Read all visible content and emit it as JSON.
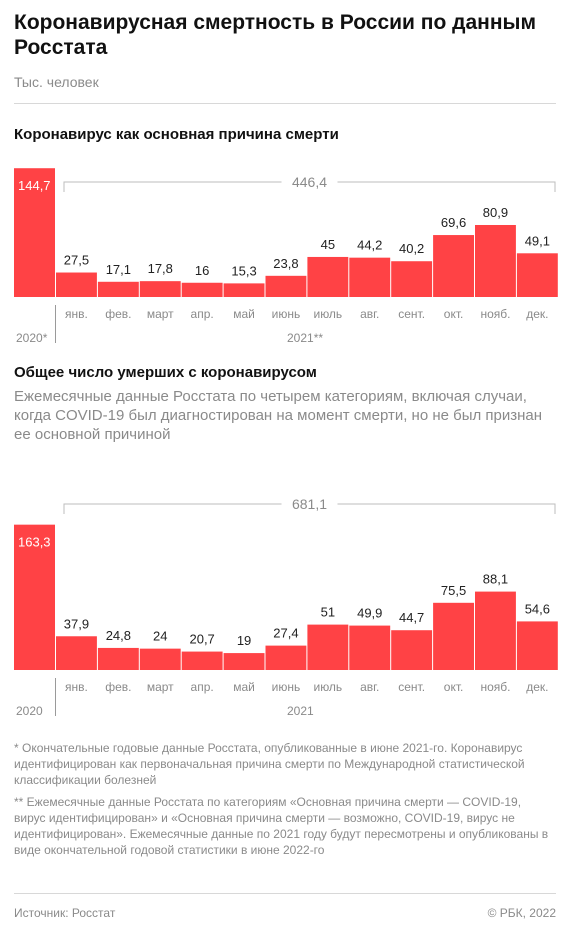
{
  "title": "Коронавирусная смертность в России по данным Росстата",
  "unit": "Тыс. человек",
  "chart_data": [
    {
      "type": "bar",
      "title": "Коронавирус как основная причина смерти",
      "subtitle": "",
      "bar_color": "#ff4245",
      "annual": {
        "year": "2020*",
        "label": "",
        "value": 144.7
      },
      "months_year": "2021**",
      "categories": [
        "янв.",
        "фев.",
        "март",
        "апр.",
        "май",
        "июнь",
        "июль",
        "авг.",
        "сент.",
        "окт.",
        "нояб.",
        "дек."
      ],
      "values": [
        27.5,
        17.1,
        17.8,
        16,
        15.3,
        23.8,
        45,
        44.2,
        40.2,
        69.6,
        80.9,
        49.1
      ],
      "value_labels": [
        "27,5",
        "17,1",
        "17,8",
        "16",
        "15,3",
        "23,8",
        "45",
        "44,2",
        "40,2",
        "69,6",
        "80,9",
        "49,1"
      ],
      "annual_label": "144,7",
      "total_label": "446,4"
    },
    {
      "type": "bar",
      "title": "Общее число умерших с коронавирусом",
      "subtitle": "Ежемесячные данные Росстата по четырем категориям, включая случаи, когда COVID-19 был диагностирован на момент смерти, но не был признан ее основной причиной",
      "bar_color": "#ff4245",
      "annual": {
        "year": "2020",
        "value": 163.3
      },
      "months_year": "2021",
      "categories": [
        "янв.",
        "фев.",
        "март",
        "апр.",
        "май",
        "июнь",
        "июль",
        "авг.",
        "сент.",
        "окт.",
        "нояб.",
        "дек."
      ],
      "values": [
        37.9,
        24.8,
        24,
        20.7,
        19,
        27.4,
        51,
        49.9,
        44.7,
        75.5,
        88.1,
        54.6
      ],
      "value_labels": [
        "37,9",
        "24,8",
        "24",
        "20,7",
        "19",
        "27,4",
        "51",
        "49,9",
        "44,7",
        "75,5",
        "88,1",
        "54,6"
      ],
      "annual_label": "163,3",
      "total_label": "681,1"
    }
  ],
  "footnotes": [
    "* Окончательные годовые данные Росстата, опубликованные в июне 2021-го. Коронавирус идентифицирован как первоначальная причина смерти по Международной статистической классификации болезней",
    "** Ежемесячные данные Росстата по категориям «Основная причина смерти — COVID-19, вирус идентифицирован» и «Основная причина смерти — возможно, COVID-19, вирус не идентифицирован». Ежемесячные данные по 2021 году будут пересмотрены и опубликованы в виде окончательной годовой статистики в июне 2022-го"
  ],
  "source": "Источник: Росстат",
  "copyright": "© РБК, 2022"
}
